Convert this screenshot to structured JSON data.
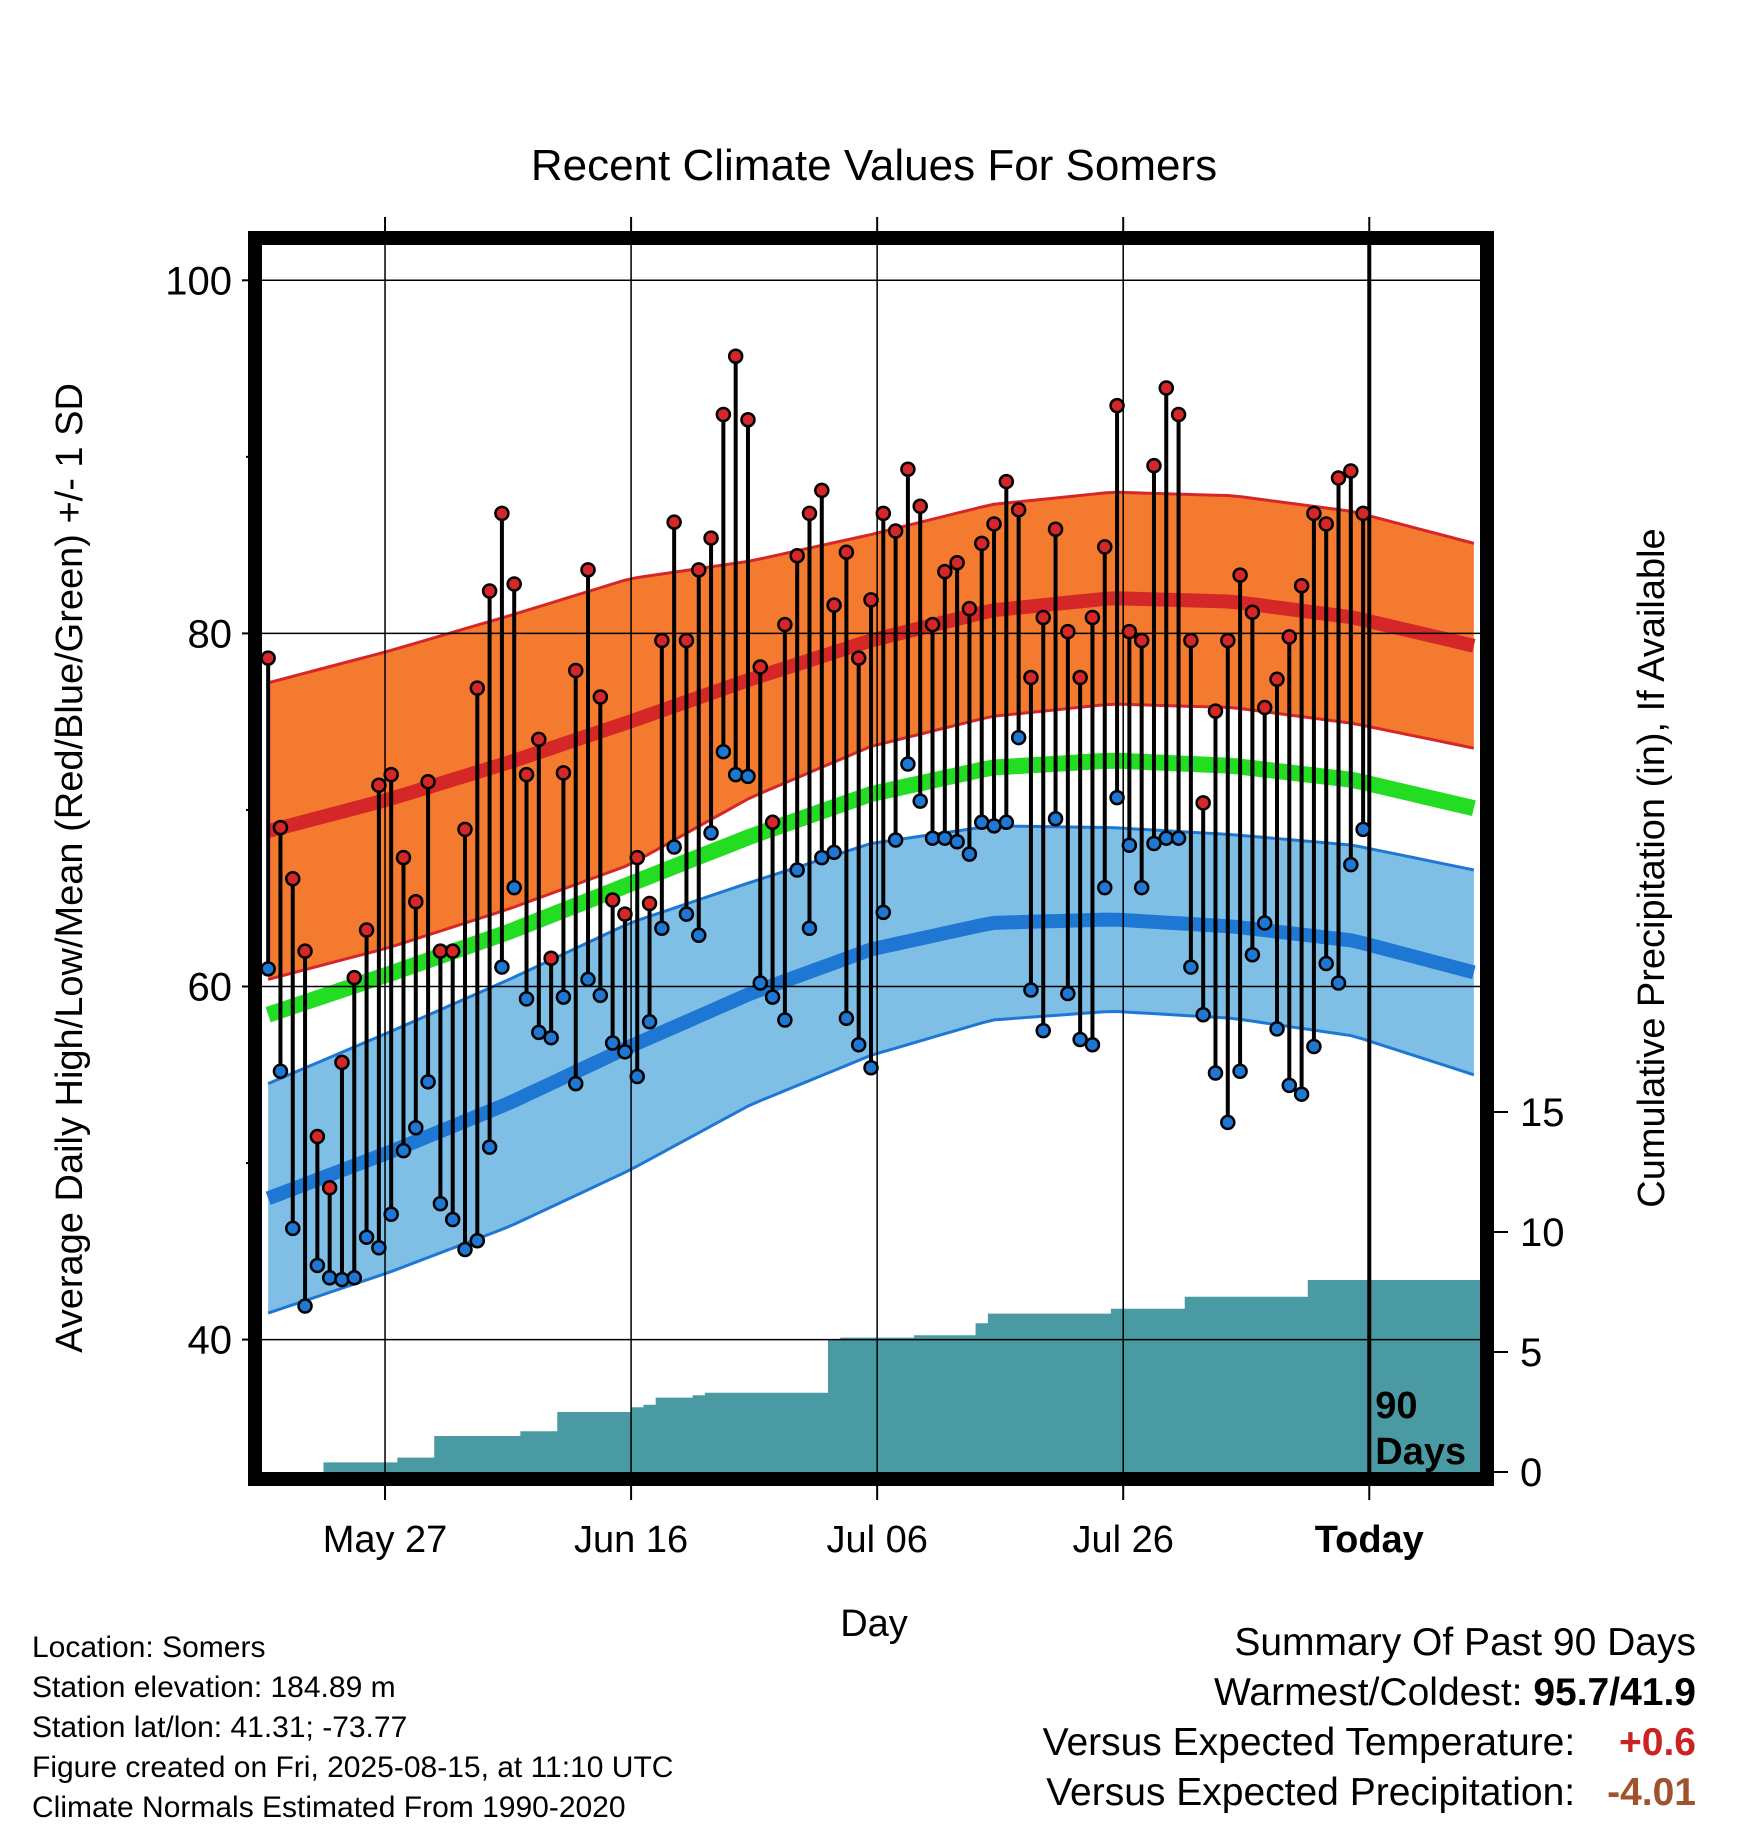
{
  "chart_data": {
    "type": "line",
    "title": "Recent Climate Values For Somers",
    "xlabel": "Day",
    "ylabel": "Average Daily High/Low/Mean (Red/Blue/Green) +/- 1 SD",
    "y2label": "Cumulative Precipitation (in), If Available",
    "ylim": [
      32.5,
      102
    ],
    "y_ticks": [
      40,
      60,
      80,
      100
    ],
    "y2_ticks": [
      0,
      5,
      10,
      15
    ],
    "x_tick_labels": [
      "May 27",
      "Jun 16",
      "Jul 06",
      "Jul 26",
      "Today"
    ],
    "today_label": "90 Days",
    "grid": true,
    "colors": {
      "high": "#d62728",
      "low": "#1f77d4",
      "mean": "#22dd22",
      "high_band": "#f47a30",
      "low_band": "#7fbfe6",
      "precip": "#4a9aa4"
    },
    "normal_high": [
      68.8,
      70.6,
      72.7,
      75.0,
      77.4,
      79.6,
      81.3,
      82.0,
      81.8,
      80.9,
      79.3
    ],
    "normal_high_sd": [
      8.4,
      8.4,
      8.3,
      8.1,
      6.7,
      6.0,
      6.0,
      6.0,
      6.0,
      6.0,
      5.8
    ],
    "normal_low": [
      48.0,
      50.6,
      53.4,
      56.6,
      59.6,
      62.1,
      63.6,
      63.8,
      63.4,
      62.6,
      60.8
    ],
    "normal_low_sd": [
      6.5,
      6.8,
      7.0,
      7.0,
      6.3,
      6.0,
      5.5,
      5.2,
      5.2,
      5.4,
      5.8
    ],
    "normal_mean": [
      58.4,
      60.7,
      63.1,
      65.8,
      68.5,
      70.9,
      72.4,
      72.8,
      72.5,
      71.7,
      70.1
    ],
    "highs": [
      78.6,
      69.0,
      66.1,
      62.0,
      51.5,
      48.6,
      55.7,
      60.5,
      63.2,
      71.4,
      72.0,
      67.3,
      64.8,
      71.6,
      62.0,
      62.0,
      68.9,
      76.9,
      82.4,
      86.8,
      82.8,
      72.0,
      74.0,
      61.6,
      72.1,
      77.9,
      83.6,
      76.4,
      64.9,
      64.1,
      67.3,
      64.7,
      79.6,
      86.3,
      79.6,
      83.6,
      85.4,
      92.4,
      95.7,
      92.1,
      78.1,
      69.3,
      80.5,
      84.4,
      86.8,
      88.1,
      81.6,
      84.6,
      78.6,
      81.9,
      86.8,
      85.8,
      89.3,
      87.2,
      80.5,
      83.5,
      84.0,
      81.4,
      85.1,
      86.2,
      88.6,
      87.0,
      77.5,
      80.9,
      85.9,
      80.1,
      77.5,
      80.9,
      84.9,
      92.9,
      80.1,
      79.6,
      89.5,
      93.9,
      92.4,
      79.6,
      70.4,
      75.6,
      79.6,
      83.3,
      81.2,
      75.8,
      77.4,
      79.8,
      82.7,
      86.8,
      86.2,
      88.8,
      89.2,
      86.8
    ],
    "lows": [
      61.0,
      55.2,
      46.3,
      41.9,
      44.2,
      43.5,
      43.4,
      43.5,
      45.8,
      45.2,
      47.1,
      50.7,
      52.0,
      54.6,
      47.7,
      46.8,
      45.1,
      45.6,
      50.9,
      61.1,
      65.6,
      59.3,
      57.4,
      57.1,
      59.4,
      54.5,
      60.4,
      59.5,
      56.8,
      56.3,
      54.9,
      58.0,
      63.3,
      67.9,
      64.1,
      62.9,
      68.7,
      73.3,
      72.0,
      71.9,
      60.2,
      59.4,
      58.1,
      66.6,
      63.3,
      67.3,
      67.6,
      58.2,
      56.7,
      55.4,
      64.2,
      68.3,
      72.6,
      70.5,
      68.4,
      68.4,
      68.2,
      67.5,
      69.3,
      69.1,
      69.3,
      74.1,
      59.8,
      57.5,
      69.5,
      59.6,
      57.0,
      56.7,
      65.6,
      70.7,
      68.0,
      65.6,
      68.1,
      68.4,
      68.4,
      61.1,
      58.4,
      55.1,
      52.3,
      55.2,
      61.8,
      63.6,
      57.6,
      54.4,
      53.9,
      56.6,
      61.3,
      60.2,
      66.9,
      68.9
    ],
    "cumulative_precip": [
      0.0,
      0.0,
      0.0,
      0.0,
      0.0,
      0.4,
      0.4,
      0.4,
      0.4,
      0.4,
      0.4,
      0.6,
      0.6,
      0.6,
      1.5,
      1.5,
      1.5,
      1.5,
      1.5,
      1.5,
      1.5,
      1.7,
      1.7,
      1.7,
      2.5,
      2.5,
      2.5,
      2.5,
      2.5,
      2.5,
      2.7,
      2.8,
      3.1,
      3.1,
      3.1,
      3.2,
      3.3,
      3.3,
      3.3,
      3.3,
      3.3,
      3.3,
      3.3,
      3.3,
      3.3,
      3.3,
      5.5,
      5.6,
      5.6,
      5.6,
      5.6,
      5.6,
      5.6,
      5.7,
      5.7,
      5.7,
      5.7,
      5.7,
      6.2,
      6.6,
      6.6,
      6.6,
      6.6,
      6.6,
      6.6,
      6.6,
      6.6,
      6.6,
      6.6,
      6.8,
      6.8,
      6.8,
      6.8,
      6.8,
      6.8,
      7.3,
      7.3,
      7.3,
      7.3,
      7.3,
      7.3,
      7.3,
      7.3,
      7.3,
      7.3,
      8.0,
      8.0,
      8.0,
      8.0,
      8.0,
      8.0
    ]
  },
  "info": {
    "location": "Location: Somers",
    "elevation": "Station elevation: 184.89 m",
    "latlon": "Station lat/lon: 41.31; -73.77",
    "created": "Figure created on Fri, 2025-08-15, at 11:10 UTC",
    "normals": "Climate Normals Estimated From 1990-2020"
  },
  "summary": {
    "heading": "Summary Of Past 90 Days",
    "warm_cold_label": "Warmest/Coldest:",
    "warm_cold_value": "95.7/41.9",
    "temp_label": "Versus Expected Temperature:",
    "temp_value": "+0.6",
    "temp_color": "#cc2222",
    "precip_label": "Versus Expected Precipitation:",
    "precip_value": "-4.01",
    "precip_color": "#a0522d"
  }
}
